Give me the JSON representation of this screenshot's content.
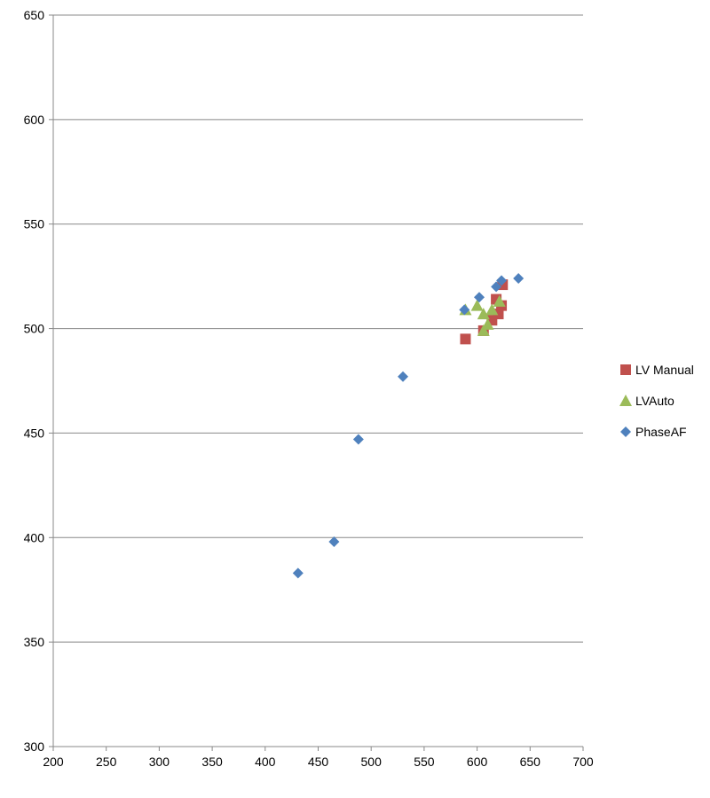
{
  "chart_data": {
    "type": "scatter",
    "title": "",
    "xlabel": "",
    "ylabel": "",
    "xlim": [
      200,
      700
    ],
    "ylim": [
      300,
      650
    ],
    "xticks": [
      200,
      250,
      300,
      350,
      400,
      450,
      500,
      550,
      600,
      650,
      700
    ],
    "yticks": [
      300,
      350,
      400,
      450,
      500,
      550,
      600,
      650
    ],
    "grid": "horizontal",
    "legend_position": "right",
    "series": [
      {
        "name": "LV Manual",
        "marker": "square",
        "color": "#c0504d",
        "points": [
          [
            589,
            495
          ],
          [
            606,
            499
          ],
          [
            614,
            504
          ],
          [
            620,
            507
          ],
          [
            623,
            511
          ],
          [
            618,
            514
          ],
          [
            624,
            521
          ]
        ]
      },
      {
        "name": "LVAuto",
        "marker": "triangle",
        "color": "#9bbb59",
        "points": [
          [
            589,
            509
          ],
          [
            600,
            511
          ],
          [
            606,
            507
          ],
          [
            606,
            499
          ],
          [
            610,
            502
          ],
          [
            614,
            509
          ],
          [
            621,
            513
          ]
        ]
      },
      {
        "name": "PhaseAF",
        "marker": "diamond",
        "color": "#4f81bd",
        "points": [
          [
            431,
            383
          ],
          [
            465,
            398
          ],
          [
            488,
            447
          ],
          [
            530,
            477
          ],
          [
            588,
            509
          ],
          [
            602,
            515
          ],
          [
            618,
            520
          ],
          [
            623,
            523
          ],
          [
            639,
            524
          ]
        ]
      }
    ]
  }
}
